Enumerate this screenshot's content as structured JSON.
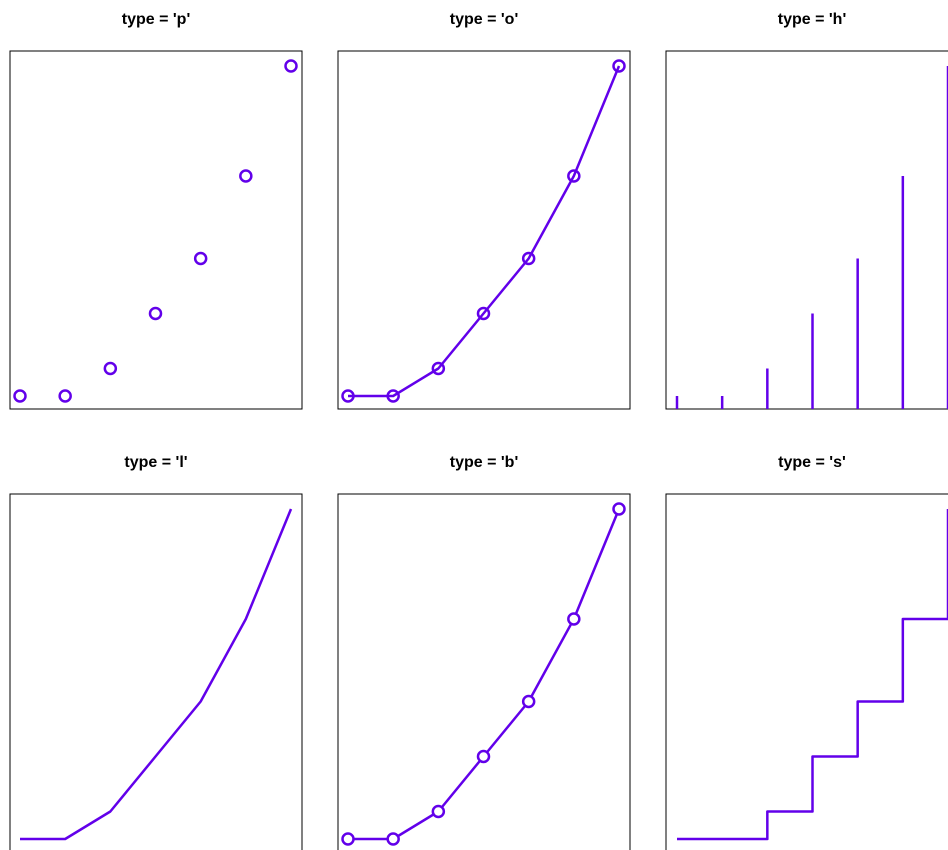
{
  "accent_color": "#6200ea",
  "chart_data": [
    {
      "type": "scatter",
      "plot_type": "p",
      "title": "type = 'p'",
      "x": [
        1,
        2,
        3,
        4,
        5,
        6,
        7
      ],
      "y": [
        0,
        0,
        1,
        3,
        5,
        8,
        12
      ],
      "ylim": [
        0,
        12
      ],
      "grid": false,
      "axes_shown": false
    },
    {
      "type": "line",
      "plot_type": "o",
      "title": "type = 'o'",
      "x": [
        1,
        2,
        3,
        4,
        5,
        6,
        7
      ],
      "y": [
        0,
        0,
        1,
        3,
        5,
        8,
        12
      ],
      "ylim": [
        0,
        12
      ],
      "grid": false,
      "axes_shown": false
    },
    {
      "type": "bar",
      "plot_type": "h",
      "title": "type = 'h'",
      "x": [
        1,
        2,
        3,
        4,
        5,
        6,
        7
      ],
      "y": [
        0,
        0,
        1,
        3,
        5,
        8,
        12
      ],
      "ylim": [
        0,
        12
      ],
      "grid": false,
      "axes_shown": false
    },
    {
      "type": "line",
      "plot_type": "l",
      "title": "type = 'l'",
      "x": [
        1,
        2,
        3,
        4,
        5,
        6,
        7
      ],
      "y": [
        0,
        0,
        1,
        3,
        5,
        8,
        12
      ],
      "ylim": [
        0,
        12
      ],
      "grid": false,
      "axes_shown": false
    },
    {
      "type": "line",
      "plot_type": "b",
      "title": "type = 'b'",
      "x": [
        1,
        2,
        3,
        4,
        5,
        6,
        7
      ],
      "y": [
        0,
        0,
        1,
        3,
        5,
        8,
        12
      ],
      "ylim": [
        0,
        12
      ],
      "grid": false,
      "axes_shown": false
    },
    {
      "type": "line",
      "plot_type": "s",
      "title": "type = 's'",
      "x": [
        1,
        2,
        3,
        4,
        5,
        6,
        7
      ],
      "y": [
        0,
        0,
        1,
        3,
        5,
        8,
        12
      ],
      "ylim": [
        0,
        12
      ],
      "grid": false,
      "axes_shown": false
    }
  ]
}
